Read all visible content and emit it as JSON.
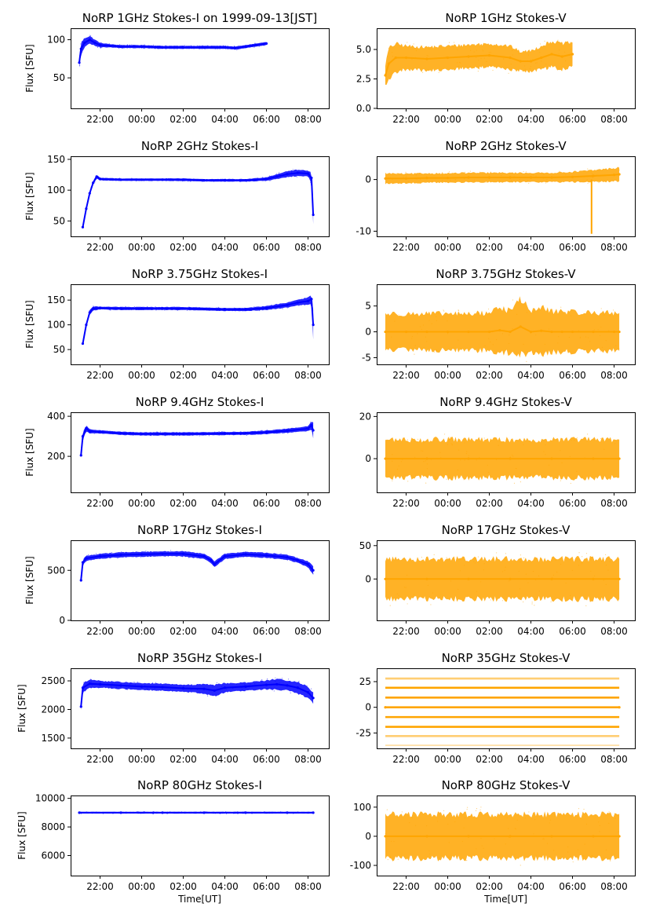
{
  "figure": {
    "title": "",
    "shared_xlabel": "Time[UT]",
    "x_tick_labels": [
      "22:00",
      "00:00",
      "02:00",
      "04:00",
      "06:00",
      "08:00"
    ]
  },
  "chart_data": [
    {
      "type": "scatter",
      "panel": "row1-left",
      "title": "NoRP 1GHz Stokes-I on 1999-09-13[JST]",
      "xlabel": "",
      "ylabel": "Flux [SFU]",
      "x_range": [
        "20:35",
        "09:00"
      ],
      "x_end": "06:00",
      "ylim": [
        10,
        115
      ],
      "y_ticks": [
        50,
        100
      ],
      "color": "#0000ff",
      "series": [
        {
          "x": [
            "21:00",
            "21:05",
            "21:15",
            "21:30",
            "21:45",
            "22:00",
            "22:30",
            "23:00",
            "00:00",
            "01:00",
            "02:00",
            "03:00",
            "04:00",
            "04:30",
            "05:00",
            "05:30",
            "06:00"
          ],
          "y": [
            70,
            88,
            96,
            100,
            96,
            93,
            92,
            91,
            91,
            90,
            90,
            90,
            90,
            89,
            91,
            93,
            95
          ],
          "spread": [
            6,
            8,
            6,
            5,
            4,
            3,
            2,
            2,
            2,
            2,
            2,
            2,
            2,
            2,
            2,
            2,
            2
          ]
        }
      ]
    },
    {
      "type": "scatter",
      "panel": "row1-right",
      "title": "NoRP 1GHz Stokes-V",
      "xlabel": "",
      "ylabel": "",
      "x_range": [
        "20:35",
        "09:00"
      ],
      "x_end": "06:00",
      "ylim": [
        0,
        6.8
      ],
      "y_ticks": [
        0.0,
        2.5,
        5.0
      ],
      "y_tick_labels": [
        "0.0",
        "2.5",
        "5.0"
      ],
      "color": "#ffa500",
      "series": [
        {
          "x": [
            "21:00",
            "21:10",
            "21:30",
            "22:00",
            "23:00",
            "00:00",
            "01:00",
            "02:00",
            "03:00",
            "03:30",
            "04:00",
            "04:30",
            "05:00",
            "05:30",
            "06:00"
          ],
          "y": [
            2.8,
            3.8,
            4.3,
            4.3,
            4.2,
            4.3,
            4.4,
            4.5,
            4.3,
            4.0,
            4.0,
            4.3,
            4.6,
            4.4,
            4.6
          ],
          "spread": [
            0.9,
            1.3,
            1.2,
            1.0,
            1.0,
            1.0,
            1.0,
            1.0,
            1.0,
            0.8,
            0.9,
            1.0,
            1.1,
            1.1,
            1.0
          ]
        }
      ]
    },
    {
      "type": "scatter",
      "panel": "row2-left",
      "title": "NoRP 2GHz Stokes-I",
      "xlabel": "",
      "ylabel": "Flux [SFU]",
      "x_range": [
        "20:35",
        "09:00"
      ],
      "x_end": "08:15",
      "ylim": [
        25,
        155
      ],
      "y_ticks": [
        50,
        100,
        150
      ],
      "color": "#0000ff",
      "series": [
        {
          "x": [
            "21:10",
            "21:20",
            "21:30",
            "21:40",
            "21:50",
            "22:00",
            "23:00",
            "00:00",
            "01:00",
            "02:00",
            "03:00",
            "04:00",
            "05:00",
            "06:00",
            "06:30",
            "07:00",
            "07:30",
            "08:00",
            "08:10",
            "08:15"
          ],
          "y": [
            40,
            70,
            95,
            112,
            122,
            118,
            117,
            117,
            117,
            117,
            116,
            116,
            116,
            118,
            122,
            126,
            128,
            127,
            120,
            60
          ],
          "spread": [
            2,
            3,
            3,
            3,
            3,
            2,
            2,
            2,
            2,
            2,
            2,
            2,
            2,
            3,
            4,
            5,
            5,
            5,
            8,
            15
          ]
        }
      ]
    },
    {
      "type": "scatter",
      "panel": "row2-right",
      "title": "NoRP 2GHz Stokes-V",
      "xlabel": "",
      "ylabel": "",
      "x_range": [
        "20:35",
        "09:00"
      ],
      "x_end": "08:15",
      "ylim": [
        -11,
        4.5
      ],
      "y_ticks": [
        -10,
        0
      ],
      "color": "#ffa500",
      "series": [
        {
          "x": [
            "21:00",
            "22:00",
            "23:00",
            "00:00",
            "01:00",
            "02:00",
            "03:00",
            "04:00",
            "05:00",
            "06:00",
            "07:00",
            "08:00",
            "08:15"
          ],
          "y": [
            0.2,
            0.2,
            0.3,
            0.3,
            0.4,
            0.4,
            0.4,
            0.4,
            0.4,
            0.5,
            0.7,
            0.9,
            1.0
          ],
          "spread": [
            1.0,
            0.9,
            0.9,
            0.9,
            0.9,
            0.9,
            0.9,
            0.9,
            0.9,
            1.0,
            1.1,
            1.3,
            1.3
          ]
        }
      ],
      "annotations": [
        {
          "x": "06:55",
          "y_min": -10.5,
          "y_max": 0
        }
      ]
    },
    {
      "type": "scatter",
      "panel": "row3-left",
      "title": "NoRP 3.75GHz Stokes-I",
      "xlabel": "",
      "ylabel": "Flux [SFU]",
      "x_range": [
        "20:35",
        "09:00"
      ],
      "x_end": "08:15",
      "ylim": [
        20,
        182
      ],
      "y_ticks": [
        50,
        100,
        150
      ],
      "color": "#0000ff",
      "series": [
        {
          "x": [
            "21:10",
            "21:20",
            "21:30",
            "21:40",
            "22:00",
            "23:00",
            "00:00",
            "01:00",
            "02:00",
            "03:00",
            "04:00",
            "05:00",
            "06:00",
            "07:00",
            "07:30",
            "08:00",
            "08:10",
            "08:15"
          ],
          "y": [
            62,
            100,
            125,
            133,
            134,
            133,
            133,
            133,
            133,
            132,
            131,
            131,
            134,
            140,
            145,
            148,
            152,
            100
          ],
          "spread": [
            3,
            5,
            5,
            4,
            3,
            3,
            3,
            3,
            3,
            3,
            3,
            3,
            4,
            5,
            6,
            7,
            8,
            30
          ]
        }
      ]
    },
    {
      "type": "scatter",
      "panel": "row3-right",
      "title": "NoRP 3.75GHz Stokes-V",
      "xlabel": "",
      "ylabel": "",
      "x_range": [
        "20:35",
        "09:00"
      ],
      "x_end": "08:15",
      "ylim": [
        -6.3,
        9.2
      ],
      "y_ticks": [
        -5,
        0,
        5
      ],
      "color": "#ffa500",
      "series": [
        {
          "x": [
            "21:00",
            "22:00",
            "23:00",
            "00:00",
            "01:00",
            "02:00",
            "02:30",
            "03:00",
            "03:30",
            "04:00",
            "04:30",
            "05:00",
            "05:30",
            "06:00",
            "07:00",
            "08:00",
            "08:15"
          ],
          "y": [
            0.0,
            0.0,
            0.0,
            0.0,
            0.0,
            0.0,
            0.3,
            0.0,
            1.0,
            0.0,
            0.2,
            0.0,
            0.0,
            0.0,
            0.0,
            0.0,
            0.0
          ],
          "spread": [
            3.5,
            3.5,
            3.5,
            3.5,
            3.5,
            3.7,
            4.5,
            4.0,
            5.5,
            4.0,
            4.5,
            4.0,
            4.0,
            3.8,
            3.7,
            3.7,
            3.7
          ]
        }
      ]
    },
    {
      "type": "scatter",
      "panel": "row4-left",
      "title": "NoRP 9.4GHz Stokes-I",
      "xlabel": "",
      "ylabel": "Flux [SFU]",
      "x_range": [
        "20:35",
        "09:00"
      ],
      "x_end": "08:15",
      "ylim": [
        20,
        420
      ],
      "y_ticks": [
        200,
        400
      ],
      "color": "#0000ff",
      "series": [
        {
          "x": [
            "21:05",
            "21:10",
            "21:20",
            "21:30",
            "22:00",
            "23:00",
            "00:00",
            "01:00",
            "02:00",
            "03:00",
            "04:00",
            "05:00",
            "06:00",
            "07:00",
            "08:00",
            "08:10",
            "08:15"
          ],
          "y": [
            205,
            300,
            340,
            325,
            322,
            315,
            312,
            312,
            312,
            313,
            314,
            315,
            320,
            328,
            338,
            355,
            330
          ],
          "spread": [
            10,
            20,
            15,
            10,
            8,
            8,
            8,
            8,
            8,
            8,
            8,
            8,
            9,
            10,
            12,
            18,
            40
          ]
        }
      ]
    },
    {
      "type": "scatter",
      "panel": "row4-right",
      "title": "NoRP 9.4GHz Stokes-V",
      "xlabel": "",
      "ylabel": "",
      "x_range": [
        "20:35",
        "09:00"
      ],
      "x_end": "08:15",
      "ylim": [
        -16,
        22
      ],
      "y_ticks": [
        0,
        20
      ],
      "color": "#ffa500",
      "series": [
        {
          "x": [
            "21:00",
            "23:00",
            "01:00",
            "03:00",
            "05:00",
            "07:00",
            "08:15"
          ],
          "y": [
            0,
            0,
            0,
            0,
            0,
            0,
            0
          ],
          "spread": [
            9,
            9,
            9,
            9,
            9,
            9,
            9
          ]
        }
      ]
    },
    {
      "type": "scatter",
      "panel": "row5-left",
      "title": "NoRP 17GHz Stokes-I",
      "xlabel": "",
      "ylabel": "Flux [SFU]",
      "x_range": [
        "20:35",
        "09:00"
      ],
      "x_end": "08:15",
      "ylim": [
        0,
        800
      ],
      "y_ticks": [
        0,
        500
      ],
      "color": "#0000ff",
      "series": [
        {
          "x": [
            "21:05",
            "21:10",
            "21:20",
            "22:00",
            "23:00",
            "00:00",
            "01:00",
            "02:00",
            "03:00",
            "03:20",
            "03:30",
            "04:00",
            "05:00",
            "06:00",
            "07:00",
            "07:30",
            "08:00",
            "08:15"
          ],
          "y": [
            400,
            580,
            620,
            640,
            655,
            660,
            665,
            665,
            640,
            600,
            560,
            640,
            660,
            650,
            630,
            600,
            560,
            500
          ],
          "spread": [
            20,
            30,
            25,
            25,
            25,
            25,
            25,
            25,
            25,
            25,
            30,
            25,
            25,
            25,
            25,
            25,
            30,
            40
          ]
        }
      ]
    },
    {
      "type": "scatter",
      "panel": "row5-right",
      "title": "NoRP 17GHz Stokes-V",
      "xlabel": "",
      "ylabel": "",
      "x_range": [
        "20:35",
        "09:00"
      ],
      "x_end": "08:15",
      "ylim": [
        -62,
        58
      ],
      "y_ticks": [
        0,
        50
      ],
      "color": "#ffa500",
      "series": [
        {
          "x": [
            "21:00",
            "23:00",
            "01:00",
            "03:00",
            "05:00",
            "07:00",
            "08:15"
          ],
          "y": [
            0,
            0,
            0,
            0,
            0,
            0,
            0
          ],
          "spread": [
            30,
            30,
            30,
            30,
            30,
            30,
            30
          ]
        }
      ]
    },
    {
      "type": "scatter",
      "panel": "row6-left",
      "title": "NoRP 35GHz Stokes-I",
      "xlabel": "",
      "ylabel": "Flux [SFU]",
      "x_range": [
        "20:35",
        "09:00"
      ],
      "x_end": "08:15",
      "ylim": [
        1320,
        2720
      ],
      "y_ticks": [
        1500,
        2000,
        2500
      ],
      "color": "#0000ff",
      "series": [
        {
          "x": [
            "21:05",
            "21:10",
            "21:30",
            "22:00",
            "23:00",
            "00:00",
            "01:00",
            "02:00",
            "03:00",
            "03:30",
            "04:00",
            "05:00",
            "06:00",
            "06:30",
            "07:00",
            "07:30",
            "08:00",
            "08:15"
          ],
          "y": [
            2050,
            2380,
            2450,
            2440,
            2420,
            2400,
            2390,
            2370,
            2360,
            2330,
            2380,
            2400,
            2430,
            2440,
            2420,
            2380,
            2300,
            2200
          ],
          "spread": [
            60,
            80,
            70,
            60,
            60,
            60,
            60,
            60,
            80,
            100,
            80,
            70,
            80,
            90,
            90,
            100,
            100,
            100
          ]
        }
      ]
    },
    {
      "type": "scatter",
      "panel": "row6-right",
      "title": "NoRP 35GHz Stokes-V",
      "xlabel": "",
      "ylabel": "",
      "x_range": [
        "20:35",
        "09:00"
      ],
      "x_end": "08:15",
      "ylim": [
        -40,
        38
      ],
      "y_ticks": [
        -25,
        0,
        25
      ],
      "color": "#ffa500",
      "levels": [
        28,
        19,
        9.5,
        0,
        -9.5,
        -19,
        -28,
        -37
      ],
      "series": [
        {
          "x": [
            "21:00",
            "08:15"
          ],
          "y": [
            0,
            0
          ],
          "spread": [
            0,
            0
          ]
        }
      ]
    },
    {
      "type": "scatter",
      "panel": "row7-left",
      "title": "NoRP 80GHz Stokes-I",
      "xlabel": "Time[UT]",
      "ylabel": "Flux [SFU]",
      "x_range": [
        "20:35",
        "09:00"
      ],
      "x_end": "08:15",
      "ylim": [
        4600,
        10200
      ],
      "y_ticks": [
        6000,
        8000,
        10000
      ],
      "color": "#0000ff",
      "series": [
        {
          "x": [
            "21:00",
            "23:00",
            "01:00",
            "03:00",
            "05:00",
            "07:00",
            "08:15"
          ],
          "y": [
            9000,
            9000,
            9000,
            9000,
            9000,
            9000,
            9000
          ],
          "spread": [
            60,
            60,
            60,
            60,
            60,
            60,
            60
          ]
        }
      ]
    },
    {
      "type": "scatter",
      "panel": "row7-right",
      "title": "NoRP 80GHz Stokes-V",
      "xlabel": "Time[UT]",
      "ylabel": "",
      "x_range": [
        "20:35",
        "09:00"
      ],
      "x_end": "08:15",
      "ylim": [
        -135,
        140
      ],
      "y_ticks": [
        -100,
        0,
        100
      ],
      "color": "#ffa500",
      "series": [
        {
          "x": [
            "21:00",
            "23:00",
            "01:00",
            "03:00",
            "05:00",
            "07:00",
            "08:15"
          ],
          "y": [
            0,
            0,
            0,
            0,
            0,
            0,
            0
          ],
          "spread": [
            75,
            75,
            75,
            75,
            75,
            75,
            75
          ]
        }
      ]
    }
  ]
}
